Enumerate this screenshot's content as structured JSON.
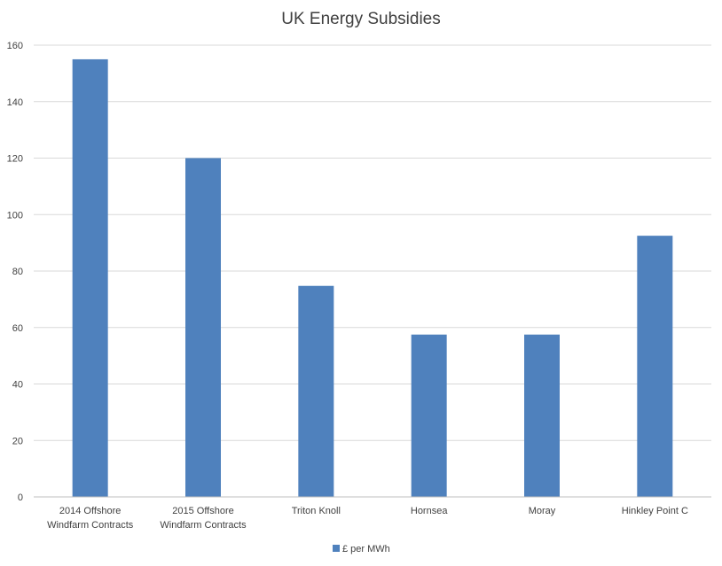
{
  "chart_data": {
    "type": "bar",
    "title": "UK Energy Subsidies",
    "categories": [
      [
        "2014 Offshore",
        "Windfarm Contracts"
      ],
      [
        "2015 Offshore",
        "Windfarm Contracts"
      ],
      [
        "Triton Knoll"
      ],
      [
        "Hornsea"
      ],
      [
        "Moray"
      ],
      [
        "Hinkley Point C"
      ]
    ],
    "series": [
      {
        "name": "£ per MWh",
        "color": "#4f81bd",
        "values": [
          155,
          120,
          74.75,
          57.5,
          57.5,
          92.5
        ]
      }
    ],
    "ylim": [
      0,
      160
    ],
    "yticks": [
      0,
      20,
      40,
      60,
      80,
      100,
      120,
      140,
      160
    ],
    "grid": true,
    "legend_position": "bottom"
  }
}
